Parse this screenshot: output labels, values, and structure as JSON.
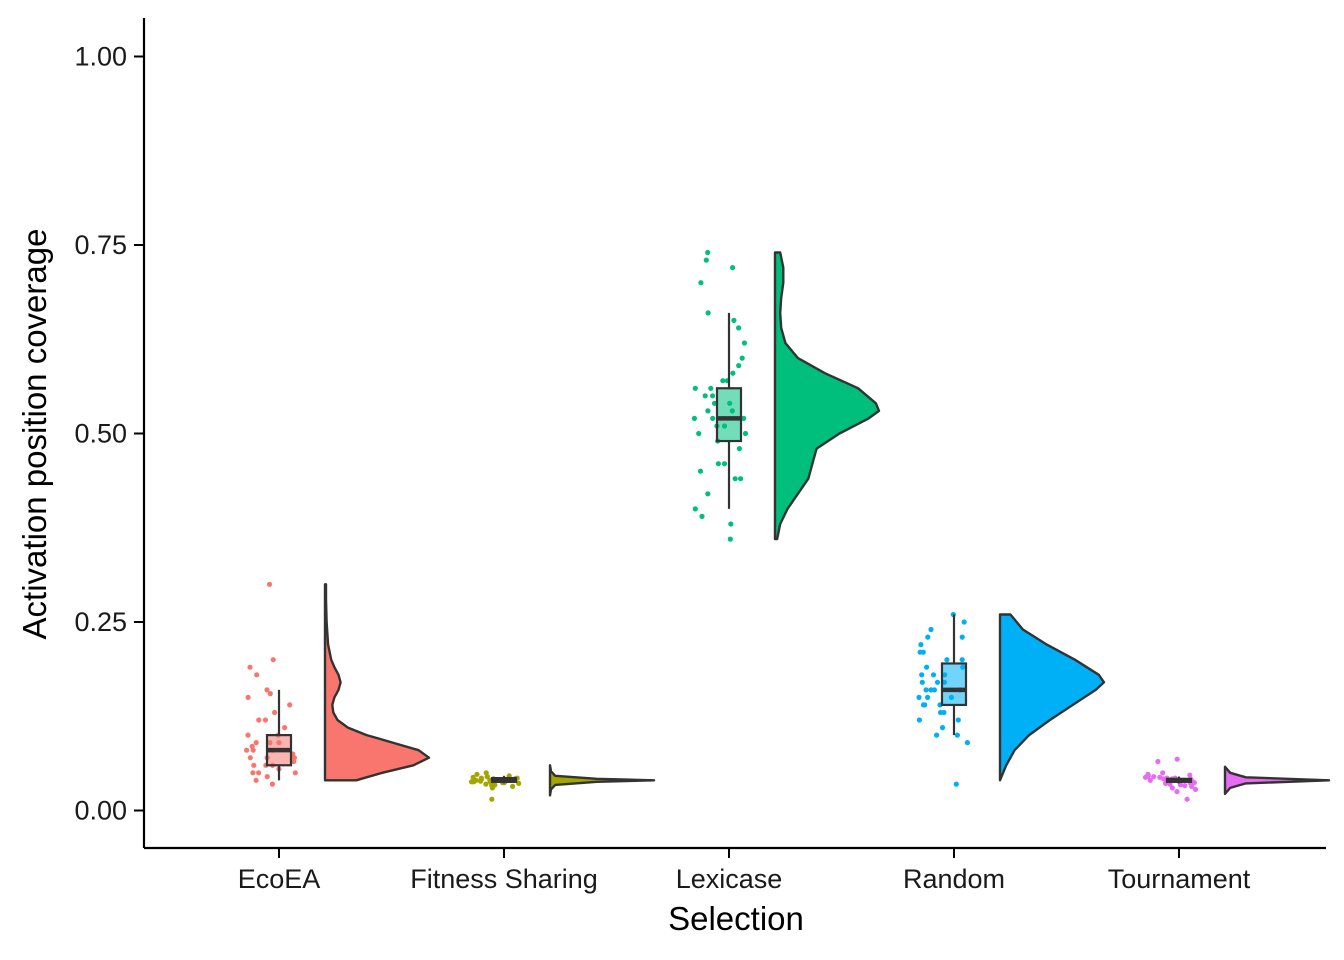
{
  "chart_data": {
    "type": "raincloud",
    "xlabel": "Selection",
    "ylabel": "Activation position coverage",
    "ylim": [
      -0.05,
      1.05
    ],
    "yticks": [
      0.0,
      0.25,
      0.5,
      0.75,
      1.0
    ],
    "ytick_labels": [
      "0.00",
      "0.25",
      "0.50",
      "0.75",
      "1.00"
    ],
    "grid": false,
    "legend": "none",
    "categories": [
      "EcoEA",
      "Fitness Sharing",
      "Lexicase",
      "Random",
      "Tournament"
    ],
    "series": [
      {
        "category": "EcoEA",
        "color": "#F8766D",
        "box": {
          "min": 0.04,
          "q1": 0.06,
          "median": 0.08,
          "q3": 0.1,
          "max": 0.16
        },
        "density": [
          [
            0.04,
            0.3
          ],
          [
            0.05,
            0.55
          ],
          [
            0.06,
            0.85
          ],
          [
            0.07,
            1.0
          ],
          [
            0.08,
            0.9
          ],
          [
            0.09,
            0.65
          ],
          [
            0.1,
            0.4
          ],
          [
            0.11,
            0.22
          ],
          [
            0.12,
            0.12
          ],
          [
            0.13,
            0.08
          ],
          [
            0.14,
            0.07
          ],
          [
            0.15,
            0.09
          ],
          [
            0.16,
            0.13
          ],
          [
            0.17,
            0.15
          ],
          [
            0.18,
            0.13
          ],
          [
            0.19,
            0.09
          ],
          [
            0.2,
            0.06
          ],
          [
            0.22,
            0.03
          ],
          [
            0.25,
            0.015
          ],
          [
            0.28,
            0.01
          ],
          [
            0.3,
            0.01
          ]
        ],
        "points": [
          0.3,
          0.2,
          0.19,
          0.18,
          0.16,
          0.155,
          0.15,
          0.14,
          0.13,
          0.12,
          0.12,
          0.11,
          0.1,
          0.1,
          0.09,
          0.09,
          0.09,
          0.085,
          0.08,
          0.08,
          0.08,
          0.08,
          0.075,
          0.07,
          0.07,
          0.07,
          0.065,
          0.06,
          0.06,
          0.06,
          0.055,
          0.05,
          0.05,
          0.05,
          0.045,
          0.04,
          0.035
        ]
      },
      {
        "category": "Fitness Sharing",
        "color": "#A3A500",
        "box": {
          "min": 0.036,
          "q1": 0.038,
          "median": 0.04,
          "q3": 0.043,
          "max": 0.046
        },
        "density": [
          [
            0.02,
            0.0
          ],
          [
            0.028,
            0.01
          ],
          [
            0.034,
            0.05
          ],
          [
            0.038,
            0.45
          ],
          [
            0.04,
            1.0
          ],
          [
            0.042,
            0.45
          ],
          [
            0.046,
            0.05
          ],
          [
            0.052,
            0.01
          ],
          [
            0.06,
            0.0
          ]
        ],
        "points": [
          0.05,
          0.048,
          0.046,
          0.045,
          0.045,
          0.044,
          0.043,
          0.043,
          0.042,
          0.042,
          0.041,
          0.041,
          0.04,
          0.04,
          0.04,
          0.04,
          0.039,
          0.039,
          0.038,
          0.038,
          0.038,
          0.037,
          0.037,
          0.036,
          0.035,
          0.035,
          0.034,
          0.033,
          0.032,
          0.03,
          0.015
        ]
      },
      {
        "category": "Lexicase",
        "color": "#00BF7D",
        "box": {
          "min": 0.4,
          "q1": 0.49,
          "median": 0.52,
          "q3": 0.56,
          "max": 0.66
        },
        "density": [
          [
            0.36,
            0.02
          ],
          [
            0.38,
            0.05
          ],
          [
            0.4,
            0.12
          ],
          [
            0.42,
            0.22
          ],
          [
            0.44,
            0.32
          ],
          [
            0.46,
            0.36
          ],
          [
            0.48,
            0.4
          ],
          [
            0.5,
            0.62
          ],
          [
            0.52,
            0.9
          ],
          [
            0.53,
            1.0
          ],
          [
            0.54,
            0.97
          ],
          [
            0.56,
            0.8
          ],
          [
            0.58,
            0.48
          ],
          [
            0.6,
            0.22
          ],
          [
            0.62,
            0.1
          ],
          [
            0.64,
            0.06
          ],
          [
            0.66,
            0.05
          ],
          [
            0.68,
            0.06
          ],
          [
            0.7,
            0.08
          ],
          [
            0.72,
            0.08
          ],
          [
            0.74,
            0.05
          ]
        ],
        "points": [
          0.74,
          0.73,
          0.72,
          0.7,
          0.66,
          0.65,
          0.64,
          0.62,
          0.6,
          0.59,
          0.58,
          0.57,
          0.57,
          0.56,
          0.56,
          0.55,
          0.55,
          0.54,
          0.54,
          0.53,
          0.53,
          0.52,
          0.52,
          0.52,
          0.51,
          0.51,
          0.5,
          0.5,
          0.49,
          0.48,
          0.46,
          0.46,
          0.45,
          0.44,
          0.44,
          0.42,
          0.4,
          0.39,
          0.38,
          0.36
        ]
      },
      {
        "category": "Random",
        "color": "#00B0F6",
        "box": {
          "min": 0.1,
          "q1": 0.14,
          "median": 0.16,
          "q3": 0.195,
          "max": 0.26
        },
        "density": [
          [
            0.04,
            0.0
          ],
          [
            0.06,
            0.06
          ],
          [
            0.08,
            0.14
          ],
          [
            0.1,
            0.28
          ],
          [
            0.12,
            0.48
          ],
          [
            0.14,
            0.7
          ],
          [
            0.16,
            0.92
          ],
          [
            0.17,
            1.0
          ],
          [
            0.18,
            0.95
          ],
          [
            0.2,
            0.72
          ],
          [
            0.22,
            0.45
          ],
          [
            0.24,
            0.22
          ],
          [
            0.26,
            0.1
          ]
        ],
        "points": [
          0.26,
          0.25,
          0.24,
          0.23,
          0.23,
          0.22,
          0.21,
          0.21,
          0.2,
          0.2,
          0.19,
          0.19,
          0.18,
          0.18,
          0.18,
          0.17,
          0.17,
          0.17,
          0.16,
          0.16,
          0.16,
          0.16,
          0.15,
          0.15,
          0.15,
          0.14,
          0.14,
          0.14,
          0.13,
          0.13,
          0.12,
          0.12,
          0.11,
          0.1,
          0.1,
          0.09,
          0.035
        ]
      },
      {
        "category": "Tournament",
        "color": "#E76BF3",
        "box": {
          "min": 0.036,
          "q1": 0.038,
          "median": 0.04,
          "q3": 0.042,
          "max": 0.045
        },
        "density": [
          [
            0.022,
            0.0
          ],
          [
            0.03,
            0.05
          ],
          [
            0.036,
            0.2
          ],
          [
            0.04,
            1.0
          ],
          [
            0.044,
            0.2
          ],
          [
            0.05,
            0.05
          ],
          [
            0.058,
            0.0
          ]
        ],
        "points": [
          0.068,
          0.065,
          0.05,
          0.048,
          0.047,
          0.046,
          0.045,
          0.045,
          0.044,
          0.044,
          0.043,
          0.043,
          0.042,
          0.042,
          0.041,
          0.041,
          0.04,
          0.04,
          0.04,
          0.04,
          0.039,
          0.039,
          0.038,
          0.038,
          0.037,
          0.037,
          0.036,
          0.035,
          0.034,
          0.033,
          0.032,
          0.03,
          0.028,
          0.025,
          0.015
        ]
      }
    ]
  }
}
